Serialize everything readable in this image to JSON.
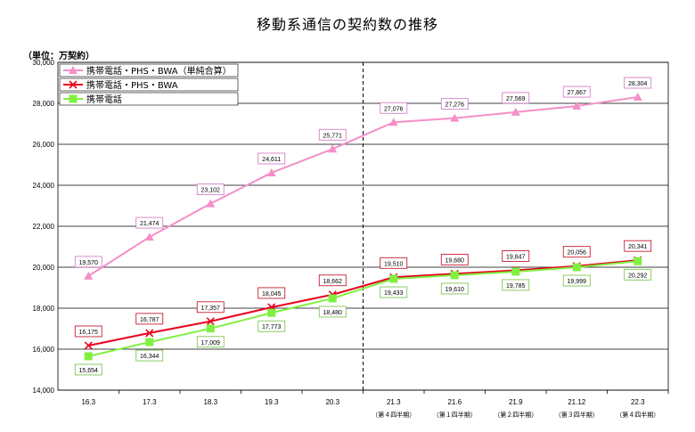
{
  "chart_data": {
    "type": "line",
    "title": "移動系通信の契約数の推移",
    "unit_label": "（単位：万契約）",
    "categories": [
      "16.3",
      "17.3",
      "18.3",
      "19.3",
      "20.3",
      "21.3",
      "21.6",
      "21.9",
      "21.12",
      "22.3"
    ],
    "sublabels": [
      "",
      "",
      "",
      "",
      "",
      "（第４四半期）",
      "（第１四半期）",
      "（第２四半期）",
      "（第３四半期）",
      "（第４四半期）"
    ],
    "y_ticks": [
      "14,000",
      "16,000",
      "18,000",
      "20,000",
      "22,000",
      "24,000",
      "26,000",
      "28,000",
      "30,000"
    ],
    "ylim": [
      14000,
      30000
    ],
    "y_step": 2000,
    "grid": true,
    "legend_position": "top-left",
    "divider_after_category": "20.3",
    "series": [
      {
        "name": "携帯電話・PHS・BWA（単純合算）",
        "color": "#f48fc8",
        "label_border": "#d070c0",
        "marker": "triangle",
        "label_position": "above",
        "values": [
          19570,
          21474,
          23102,
          24611,
          25771,
          27076,
          27276,
          27569,
          27867,
          28304
        ],
        "labels": [
          "19,570",
          "21,474",
          "23,102",
          "24,611",
          "25,771",
          "27,076",
          "27,276",
          "27,569",
          "27,867",
          "28,304"
        ]
      },
      {
        "name": "携帯電話・PHS・BWA",
        "color": "#e8001c",
        "label_border": "#c00018",
        "marker": "x",
        "label_position": "above",
        "values": [
          16175,
          16787,
          17357,
          18045,
          18662,
          19510,
          19680,
          19847,
          20056,
          20341
        ],
        "labels": [
          "16,175",
          "16,787",
          "17,357",
          "18,045",
          "18,662",
          "19,510",
          "19,680",
          "19,847",
          "20,056",
          "20,341"
        ]
      },
      {
        "name": "携帯電話",
        "color": "#80f040",
        "label_border": "#6fbf3f",
        "marker": "square",
        "label_position": "below",
        "values": [
          15654,
          16344,
          17009,
          17773,
          18480,
          19433,
          19610,
          19785,
          19999,
          20292
        ],
        "labels": [
          "15,654",
          "16,344",
          "17,009",
          "17,773",
          "18,480",
          "19,433",
          "19,610",
          "19,785",
          "19,999",
          "20,292"
        ]
      }
    ]
  }
}
